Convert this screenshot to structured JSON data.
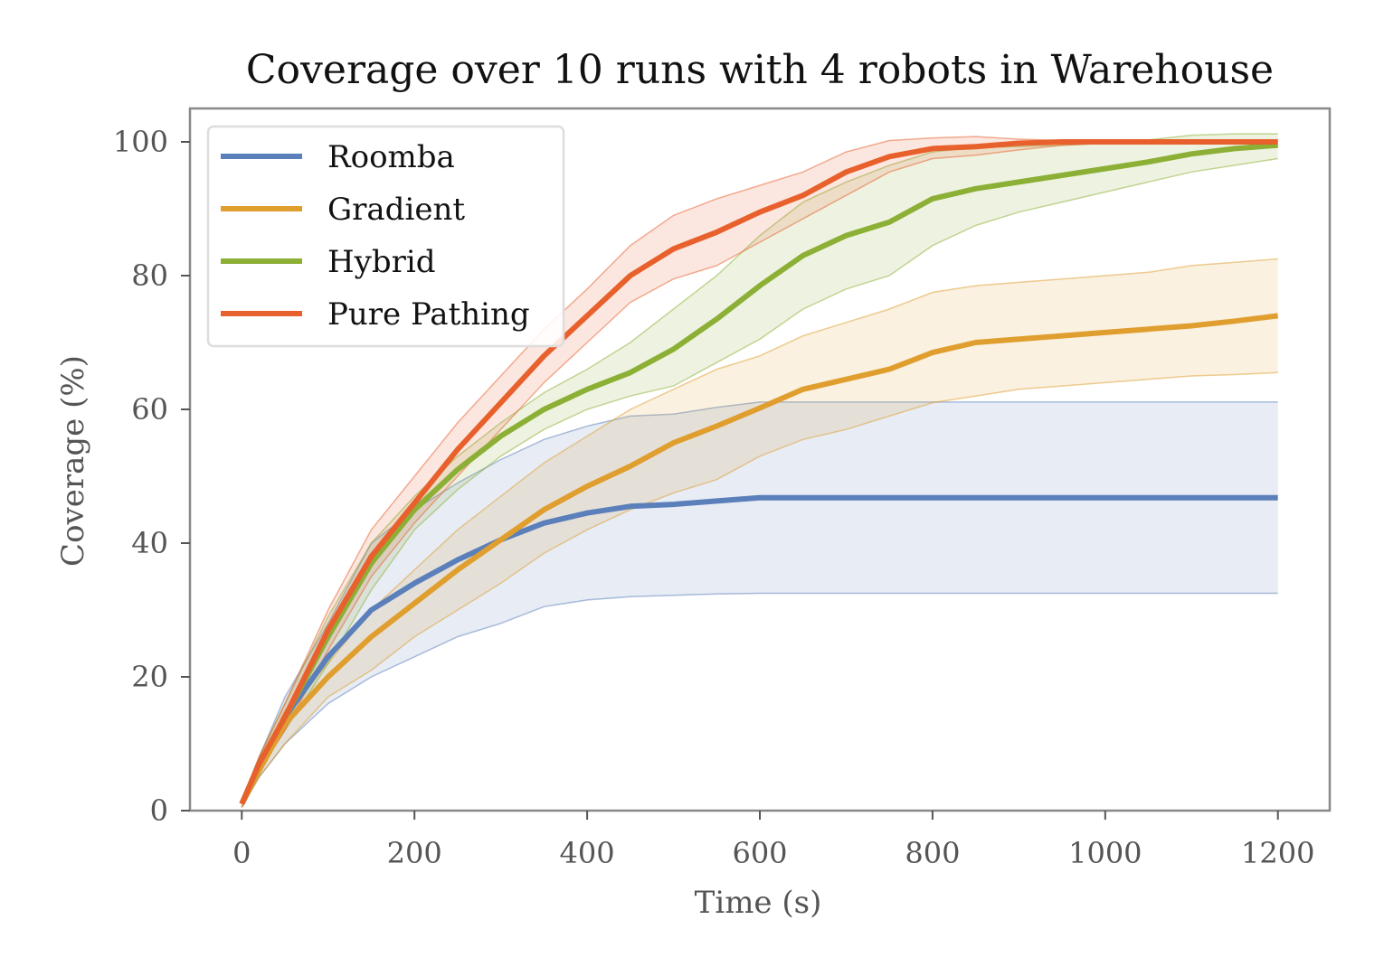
{
  "chart_data": {
    "type": "line",
    "title": "Coverage over 10 runs with 4 robots in Warehouse",
    "xlabel": "Time (s)",
    "ylabel": "Coverage (%)",
    "xlim": [
      -60,
      1260
    ],
    "ylim": [
      0,
      105
    ],
    "xticks": [
      0,
      200,
      400,
      600,
      800,
      1000,
      1200
    ],
    "yticks": [
      0,
      20,
      40,
      60,
      80,
      100
    ],
    "grid": false,
    "legend": "top-left",
    "x": [
      0,
      20,
      50,
      100,
      150,
      200,
      250,
      300,
      350,
      400,
      450,
      500,
      550,
      600,
      650,
      700,
      750,
      800,
      850,
      900,
      950,
      1000,
      1050,
      1100,
      1150,
      1200
    ],
    "series": [
      {
        "name": "Roomba",
        "color": "#5b7fba",
        "mean": [
          1,
          6,
          14,
          23,
          30,
          34,
          37.5,
          40.5,
          43,
          44.5,
          45.5,
          45.8,
          46.3,
          46.8,
          46.8,
          46.8,
          46.8,
          46.8,
          46.8,
          46.8,
          46.8,
          46.8,
          46.8,
          46.8,
          46.8,
          46.8
        ],
        "upper": [
          1.5,
          8,
          17,
          28,
          40,
          45,
          49,
          52.5,
          55.5,
          57.5,
          59,
          59.3,
          60.3,
          61.1,
          61.1,
          61.1,
          61.1,
          61.1,
          61.1,
          61.1,
          61.1,
          61.1,
          61.1,
          61.1,
          61.1,
          61.1
        ],
        "lower": [
          0.5,
          5,
          10,
          16,
          20,
          23,
          26,
          28,
          30.5,
          31.5,
          32,
          32.2,
          32.4,
          32.5,
          32.5,
          32.5,
          32.5,
          32.5,
          32.5,
          32.5,
          32.5,
          32.5,
          32.5,
          32.5,
          32.5,
          32.5
        ]
      },
      {
        "name": "Gradient",
        "color": "#e09e2e",
        "mean": [
          1,
          6,
          13,
          20,
          26,
          31,
          36,
          40.5,
          45,
          48.5,
          51.5,
          55,
          57.5,
          60.2,
          63,
          64.5,
          66,
          68.5,
          70,
          70.5,
          71,
          71.5,
          72,
          72.5,
          73.2,
          74
        ],
        "upper": [
          1.5,
          7,
          15,
          22,
          30,
          36,
          42,
          47,
          52,
          56,
          60,
          63,
          66,
          68,
          71,
          73,
          75,
          77.5,
          78.5,
          79,
          79.5,
          80,
          80.5,
          81.5,
          82,
          82.5
        ],
        "lower": [
          0.5,
          5,
          10,
          17,
          21,
          26,
          30,
          34,
          38.5,
          42,
          45,
          47.5,
          49.5,
          53,
          55.5,
          57,
          59,
          61,
          62,
          63,
          63.5,
          64,
          64.5,
          65,
          65.2,
          65.5
        ]
      },
      {
        "name": "Hybrid",
        "color": "#8caf36",
        "mean": [
          1,
          7,
          14,
          26,
          37,
          45,
          51,
          56,
          60,
          63,
          65.5,
          69,
          73.5,
          78.5,
          83,
          86,
          88,
          91.5,
          93,
          94,
          95,
          96,
          97,
          98.2,
          99,
          99.5
        ],
        "upper": [
          1.5,
          8,
          16,
          29,
          40,
          47,
          53,
          58,
          62.5,
          66,
          70,
          75,
          80,
          86,
          91,
          94,
          96.5,
          98.5,
          99.2,
          99.3,
          99.5,
          99.8,
          100.3,
          101,
          101.2,
          101.2
        ],
        "lower": [
          0.5,
          6,
          12,
          22,
          33,
          42,
          48,
          53,
          57,
          60,
          62,
          63.5,
          67,
          70.5,
          75,
          78,
          80,
          84.5,
          87.5,
          89.5,
          91,
          92.5,
          94,
          95.5,
          96.5,
          97.5
        ]
      },
      {
        "name": "Pure Pathing",
        "color": "#e8602c",
        "mean": [
          1,
          7,
          14,
          27,
          38,
          46,
          54,
          61,
          68,
          74,
          80,
          84,
          86.5,
          89.5,
          92,
          95.5,
          97.8,
          99,
          99.3,
          99.8,
          100,
          100,
          100,
          100,
          100,
          100
        ],
        "upper": [
          1.5,
          8,
          16,
          30,
          42,
          50,
          58,
          65,
          72,
          78,
          84.5,
          89,
          91.5,
          93.5,
          95.5,
          98.5,
          100.2,
          100.6,
          100.8,
          100.4,
          100.2,
          100,
          100,
          100,
          100,
          100
        ],
        "lower": [
          0.5,
          6,
          12,
          24,
          35,
          43,
          50,
          57,
          64,
          70,
          76,
          79.5,
          81.5,
          85,
          88.5,
          92,
          95.5,
          97.5,
          98,
          98.8,
          99.5,
          99.8,
          100,
          100,
          100,
          100
        ]
      }
    ]
  }
}
